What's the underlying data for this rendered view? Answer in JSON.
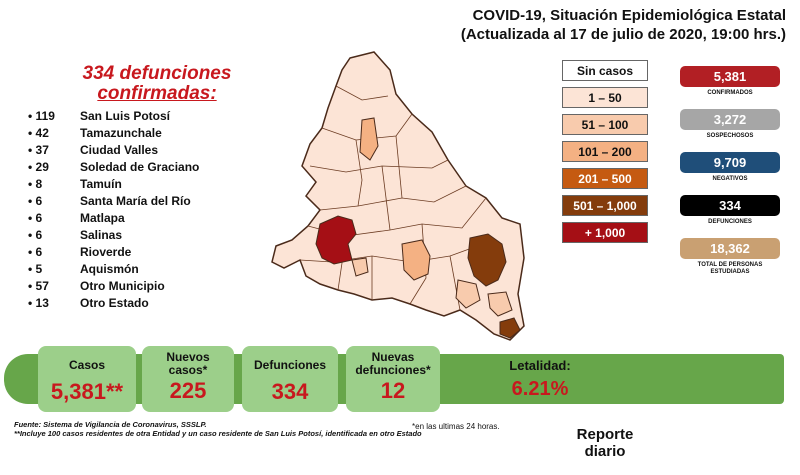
{
  "header": {
    "line1": "COVID-19, Situación Epidemiológica Estatal",
    "line2": "(Actualizada al 17 de julio de 2020, 19:00 hrs.)"
  },
  "deaths_heading": {
    "line1": "334 defunciones",
    "line2": "confirmadas:"
  },
  "deaths_by_municipality": [
    {
      "count": "119",
      "name": "San Luis Potosí"
    },
    {
      "count": "42",
      "name": "Tamazunchale"
    },
    {
      "count": "37",
      "name": "Ciudad Valles"
    },
    {
      "count": "29",
      "name": "Soledad de Graciano"
    },
    {
      "count": "8",
      "name": "Tamuín"
    },
    {
      "count": "6",
      "name": "Santa María del Río"
    },
    {
      "count": "6",
      "name": "Matlapa"
    },
    {
      "count": "6",
      "name": "Salinas"
    },
    {
      "count": "6",
      "name": "Rioverde"
    },
    {
      "count": "5",
      "name": "Aquismón"
    },
    {
      "count": "57",
      "name": "Otro Municipio"
    },
    {
      "count": "13",
      "name": "Otro Estado"
    }
  ],
  "legend": [
    {
      "label": "Sin casos",
      "color": "#ffffff",
      "text_color": "#111111"
    },
    {
      "label": "1 – 50",
      "color": "#fce4d6",
      "text_color": "#111111"
    },
    {
      "label": "51 – 100",
      "color": "#f8cbad",
      "text_color": "#111111"
    },
    {
      "label": "101 – 200",
      "color": "#f4b183",
      "text_color": "#111111"
    },
    {
      "label": "201 – 500",
      "color": "#c55a11",
      "text_color": "#ffffff"
    },
    {
      "label": "501 – 1,000",
      "color": "#843c0c",
      "text_color": "#ffffff"
    },
    {
      "label": "+ 1,000",
      "color": "#a50f15",
      "text_color": "#ffffff"
    }
  ],
  "stats": [
    {
      "value": "5,381",
      "label": "CONFIRMADOS",
      "color": "#b21f24"
    },
    {
      "value": "3,272",
      "label": "SOSPECHOSOS",
      "color": "#a6a6a6"
    },
    {
      "value": "9,709",
      "label": "NEGATIVOS",
      "color": "#1f4e79"
    },
    {
      "value": "334",
      "label": "DEFUNCIONES",
      "color": "#000000"
    },
    {
      "value": "18,362",
      "label": "TOTAL DE PERSONAS ESTUDIADAS",
      "color": "#c9a072"
    }
  ],
  "summary": {
    "casos_label": "Casos",
    "casos_value": "5,381**",
    "nuevos_casos_label": "Nuevos casos*",
    "nuevos_casos_value": "225",
    "defunciones_label": "Defunciones",
    "defunciones_value": "334",
    "nuevas_def_label": "Nuevas defunciones*",
    "nuevas_def_value": "12",
    "letalidad_label": "Letalidad:",
    "letalidad_value": "6.21%"
  },
  "footer": {
    "source": "Fuente: Sistema de Vigilancia de Coronavirus, SSSLP.",
    "note": "**Incluye 100 casos residentes de otra Entidad y un caso residente de San Luis Potosí, identificada en otro Estado",
    "last24": "*en las ultimas 24 horas.",
    "reporte": "Reporte diario"
  },
  "colors": {
    "accent_red": "#c8181e",
    "bar_green": "#67a64a",
    "card_green": "#9ccf8a",
    "map_base": "#fce4d6",
    "map_border": "#4a2a1a"
  }
}
